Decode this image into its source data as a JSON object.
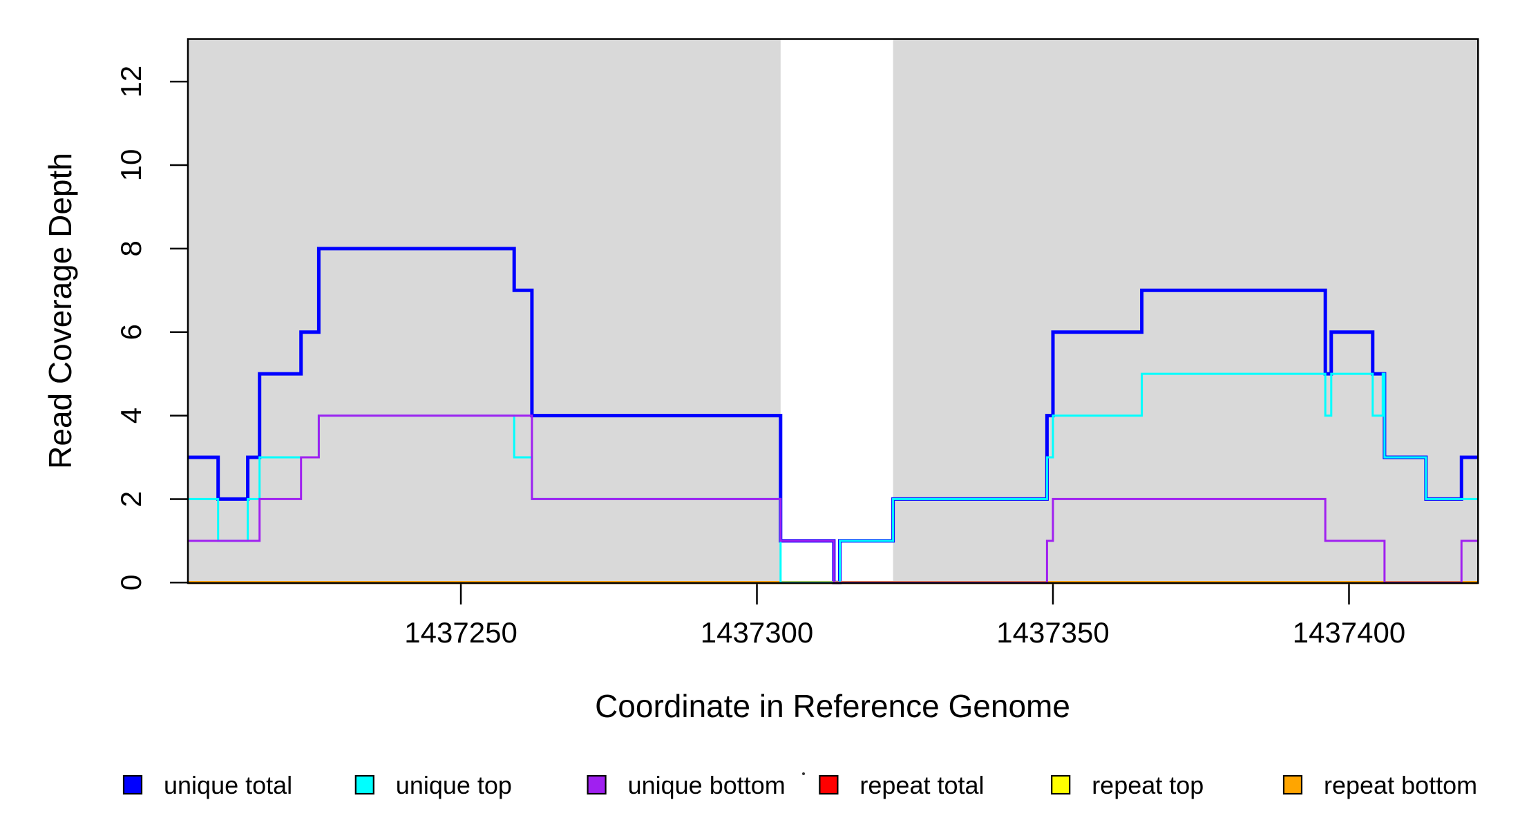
{
  "chart_data": {
    "type": "line",
    "subtype": "step-coverage-plot",
    "title": "",
    "xlabel": "Coordinate in Reference Genome",
    "ylabel": "Read Coverage Depth",
    "xlim": [
      1437203.9,
      1437421.8
    ],
    "ylim": [
      0,
      13.02
    ],
    "x_ticks": [
      1437250,
      1437300,
      1437350,
      1437400
    ],
    "x_tick_labels": [
      "1437250",
      "1437300",
      "1437350",
      "1437400"
    ],
    "y_ticks": [
      0,
      2,
      4,
      6,
      8,
      10,
      12
    ],
    "y_tick_labels": [
      "0",
      "2",
      "4",
      "6",
      "8",
      "10",
      "12"
    ],
    "grid": false,
    "plot_background": "#ffffff",
    "shaded_regions": [
      {
        "name": "left-gray-region",
        "from": 1437203.9,
        "to": 1437304,
        "color": "#d9d9d9"
      },
      {
        "name": "right-gray-region",
        "from": 1437323,
        "to": 1437421.8,
        "color": "#d9d9d9"
      }
    ],
    "series": [
      {
        "name": "unique total",
        "color": "#0000ff",
        "width": 5,
        "steps": [
          [
            1437203.9,
            3
          ],
          [
            1437209,
            2
          ],
          [
            1437214,
            3
          ],
          [
            1437216,
            5
          ],
          [
            1437223,
            6
          ],
          [
            1437226,
            8
          ],
          [
            1437259,
            7
          ],
          [
            1437262,
            4
          ],
          [
            1437304,
            1
          ],
          [
            1437313,
            0
          ],
          [
            1437314,
            1
          ],
          [
            1437323,
            2
          ],
          [
            1437349,
            4
          ],
          [
            1437350,
            6
          ],
          [
            1437365,
            7
          ],
          [
            1437396,
            5
          ],
          [
            1437397,
            6
          ],
          [
            1437404,
            5
          ],
          [
            1437406,
            3
          ],
          [
            1437413,
            2
          ],
          [
            1437419,
            3
          ]
        ]
      },
      {
        "name": "unique top",
        "color": "#00ffff",
        "width": 3,
        "steps": [
          [
            1437203.9,
            2
          ],
          [
            1437209,
            1
          ],
          [
            1437214,
            2
          ],
          [
            1437216,
            3
          ],
          [
            1437226,
            4
          ],
          [
            1437259,
            3
          ],
          [
            1437262,
            2
          ],
          [
            1437304,
            0
          ],
          [
            1437314,
            1
          ],
          [
            1437323,
            2
          ],
          [
            1437349,
            3
          ],
          [
            1437350,
            4
          ],
          [
            1437365,
            5
          ],
          [
            1437396,
            4
          ],
          [
            1437397,
            5
          ],
          [
            1437404,
            4
          ],
          [
            1437405.7,
            5
          ],
          [
            1437406,
            3
          ],
          [
            1437413,
            2
          ]
        ]
      },
      {
        "name": "unique bottom",
        "color": "#a020f0",
        "width": 3,
        "steps": [
          [
            1437203.9,
            1
          ],
          [
            1437216,
            2
          ],
          [
            1437223,
            3
          ],
          [
            1437226,
            4
          ],
          [
            1437262,
            2
          ],
          [
            1437304,
            1
          ],
          [
            1437313,
            0
          ],
          [
            1437349,
            1
          ],
          [
            1437350,
            2
          ],
          [
            1437396,
            1
          ],
          [
            1437406,
            0
          ],
          [
            1437419,
            1
          ]
        ]
      },
      {
        "name": "repeat total",
        "color": "#ff0000",
        "width": 3,
        "steps": [
          [
            1437203.9,
            0
          ]
        ]
      },
      {
        "name": "repeat top",
        "color": "#ffff00",
        "width": 3,
        "steps": [
          [
            1437203.9,
            0
          ]
        ]
      },
      {
        "name": "repeat bottom",
        "color": "#ffa500",
        "width": 4.5,
        "steps": [
          [
            1437203.9,
            0
          ]
        ]
      }
    ],
    "draw_order": [
      0,
      3,
      4,
      5,
      1,
      2
    ],
    "legend": {
      "position": "bottom",
      "items": [
        {
          "label": "unique total",
          "color": "#0000ff"
        },
        {
          "label": "unique top",
          "color": "#00ffff"
        },
        {
          "label": "unique bottom",
          "color": "#a020f0"
        },
        {
          "label": "repeat total",
          "color": "#ff0000"
        },
        {
          "label": "repeat top",
          "color": "#ffff00"
        },
        {
          "label": "repeat bottom",
          "color": "#ffa500"
        }
      ]
    },
    "axis_color": "#000000"
  }
}
